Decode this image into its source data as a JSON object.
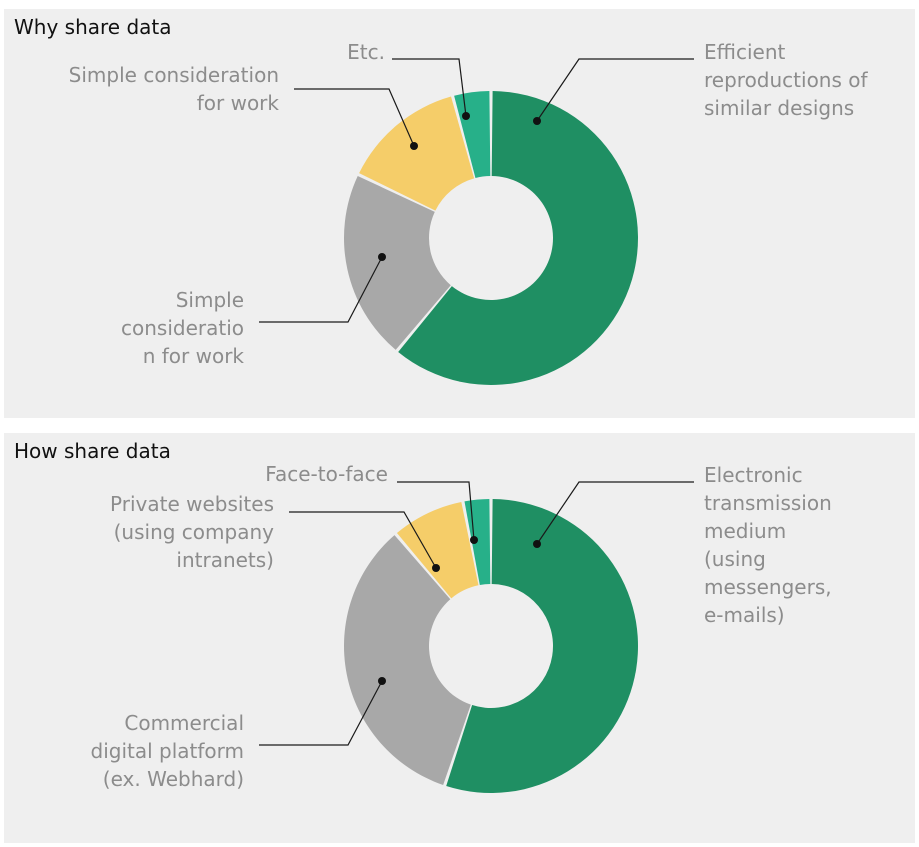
{
  "chart_data": [
    {
      "type": "pie",
      "title": "Why share data",
      "colors": [
        "#1f8f63",
        "#a8a8a8",
        "#f5cd69",
        "#27b089"
      ],
      "slices": [
        {
          "label": [
            "Efficient",
            "reproductions of",
            "similar designs"
          ],
          "value": 58
        },
        {
          "label": [
            "Simple",
            "consideratio",
            "n for work"
          ],
          "value": 20
        },
        {
          "label": [
            "Simple consideration",
            "for work"
          ],
          "value": 13
        },
        {
          "label": [
            "Etc."
          ],
          "value": 4
        }
      ]
    },
    {
      "type": "pie",
      "title": "How share data",
      "colors": [
        "#1f8f63",
        "#a8a8a8",
        "#f5cd69",
        "#27b089"
      ],
      "slices": [
        {
          "label": [
            "Electronic",
            "transmission",
            "medium",
            "(using",
            "messengers,",
            "e-mails)"
          ],
          "value": 54
        },
        {
          "label": [
            "Commercial",
            "digital platform",
            "(ex. Webhard)"
          ],
          "value": 33
        },
        {
          "label": [
            "Private websites",
            "(using company",
            "intranets)"
          ],
          "value": 8
        },
        {
          "label": [
            "Face-to-face"
          ],
          "value": 3
        }
      ]
    }
  ]
}
